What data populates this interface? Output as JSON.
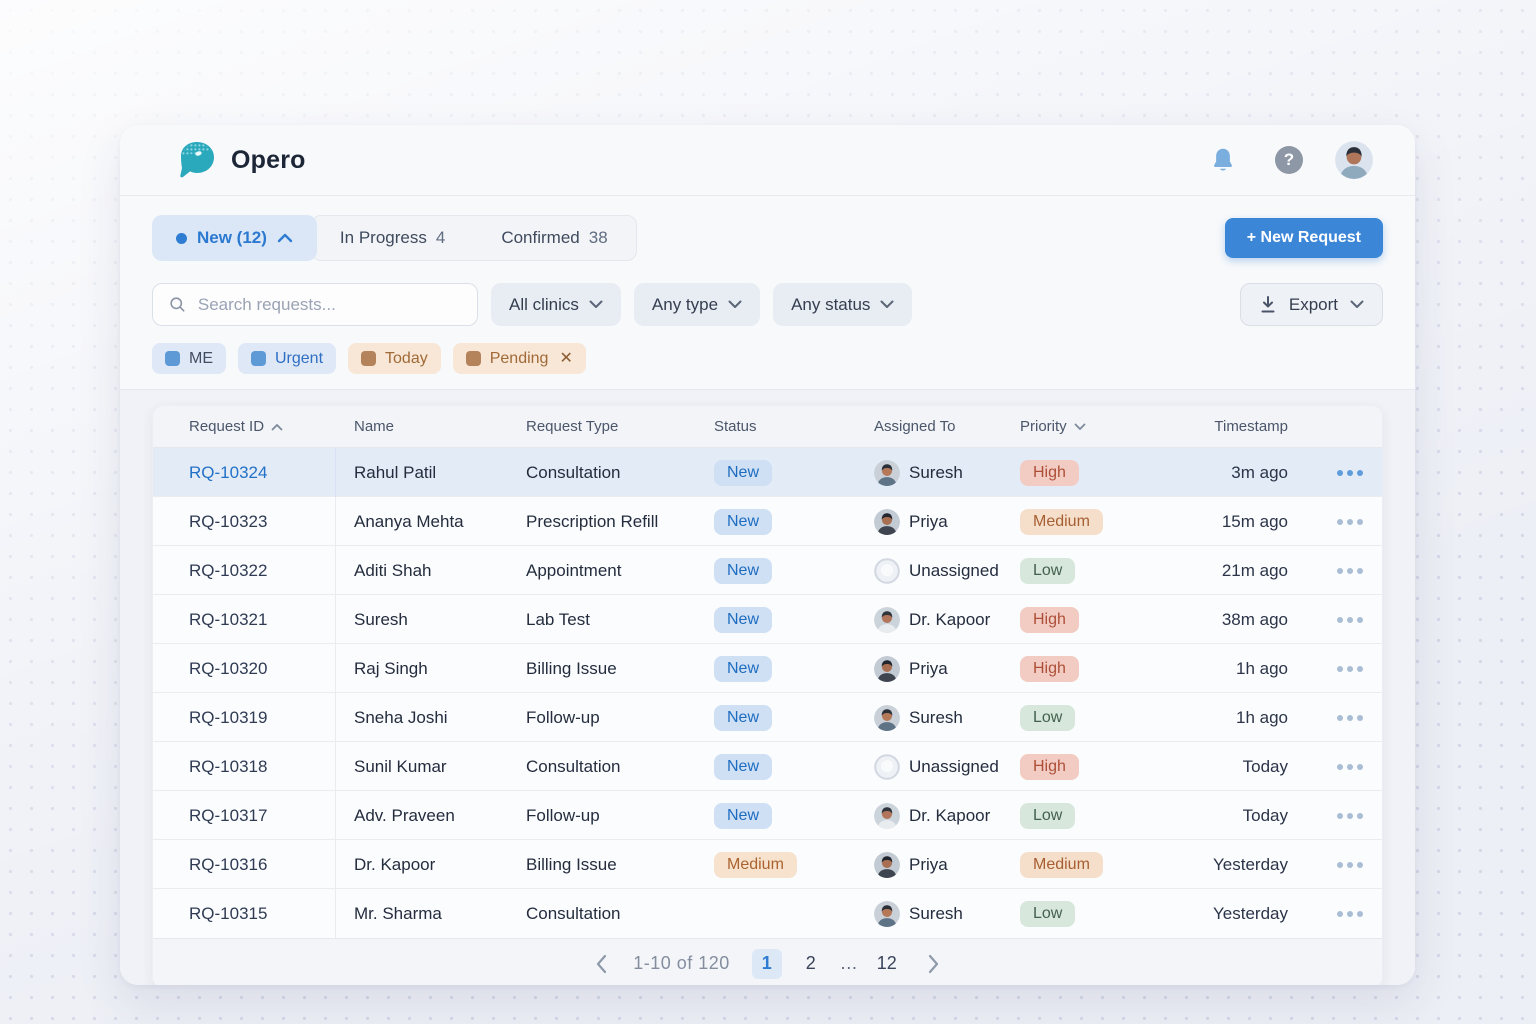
{
  "brand": {
    "name": "Opero",
    "logo_icon": "fish-logo-icon",
    "logo_colors": {
      "body": "#2aa9bd",
      "top": "#8fd6de",
      "accent": "#1b8fa6"
    }
  },
  "header": {
    "bell_icon": "notification-bell-icon",
    "help_icon": "help-question-icon",
    "avatar": "user-avatar",
    "bell_color": "#79aede"
  },
  "tabs": {
    "active": {
      "label": "New (12)"
    },
    "inactive": [
      {
        "label": "In Progress",
        "count": "4"
      },
      {
        "label": "Confirmed",
        "count": "38"
      }
    ]
  },
  "actions": {
    "new_request_label": "+ New Request",
    "accent_color": "#3c86d8"
  },
  "filters": {
    "search_placeholder": "Search requests...",
    "clinics_label": "All clinics",
    "type_label": "Any type",
    "status_label": "Any status",
    "export_label": "Export"
  },
  "chips": [
    {
      "label": "ME",
      "tone": "blue",
      "accent_text": false,
      "closable": false
    },
    {
      "label": "Urgent",
      "tone": "blue",
      "accent_text": true,
      "closable": false
    },
    {
      "label": "Today",
      "tone": "orange",
      "accent_text": true,
      "closable": false
    },
    {
      "label": "Pending",
      "tone": "orange",
      "accent_text": true,
      "closable": true
    }
  ],
  "table": {
    "columns": [
      {
        "label": "Request ID",
        "sort": "asc"
      },
      {
        "label": "Name"
      },
      {
        "label": "Request Type"
      },
      {
        "label": "Status"
      },
      {
        "label": "Assigned To"
      },
      {
        "label": "Priority",
        "sort": "desc"
      },
      {
        "label": "Timestamp"
      }
    ],
    "status_colors": {
      "new_bg": "#cfe0f4",
      "new_text": "#1d6cc0"
    },
    "priority_colors": {
      "high_bg": "#f2ccc3",
      "high_text": "#ad4f38",
      "medium_bg": "#f6dfca",
      "medium_text": "#a55f33",
      "low_bg": "#d7e7db",
      "low_text": "#44604f"
    },
    "rows": [
      {
        "id": "RQ-10324",
        "name": "Rahul Patil",
        "type": "Consultation",
        "status": "New",
        "assigned": "Suresh",
        "avatar": "suresh",
        "priority": "High",
        "time": "3m ago",
        "selected": true
      },
      {
        "id": "RQ-10323",
        "name": "Ananya Mehta",
        "type": "Prescription Refill",
        "status": "New",
        "assigned": "Priya",
        "avatar": "priya",
        "priority": "Medium",
        "time": "15m ago",
        "selected": false
      },
      {
        "id": "RQ-10322",
        "name": "Aditi Shah",
        "type": "Appointment",
        "status": "New",
        "assigned": "Unassigned",
        "avatar": "none",
        "priority": "Low",
        "time": "21m ago",
        "selected": false
      },
      {
        "id": "RQ-10321",
        "name": "Suresh",
        "type": "Lab Test",
        "status": "New",
        "assigned": "Dr. Kapoor",
        "avatar": "kapoor",
        "priority": "High",
        "time": "38m ago",
        "selected": false
      },
      {
        "id": "RQ-10320",
        "name": "Raj Singh",
        "type": "Billing Issue",
        "status": "New",
        "assigned": "Priya",
        "avatar": "priya",
        "priority": "High",
        "time": "1h ago",
        "selected": false
      },
      {
        "id": "RQ-10319",
        "name": "Sneha Joshi",
        "type": "Follow-up",
        "status": "New",
        "assigned": "Suresh",
        "avatar": "suresh",
        "priority": "Low",
        "time": "1h ago",
        "selected": false
      },
      {
        "id": "RQ-10318",
        "name": "Sunil Kumar",
        "type": "Consultation",
        "status": "New",
        "assigned": "Unassigned",
        "avatar": "none",
        "priority": "High",
        "time": "Today",
        "selected": false
      },
      {
        "id": "RQ-10317",
        "name": "Adv. Praveen",
        "type": "Follow-up",
        "status": "New",
        "assigned": "Dr. Kapoor",
        "avatar": "kapoor",
        "priority": "Low",
        "time": "Today",
        "selected": false
      },
      {
        "id": "RQ-10316",
        "name": "Dr. Kapoor",
        "type": "Billing Issue",
        "status": "Medium",
        "assigned": "Priya",
        "avatar": "priya",
        "priority": "Medium",
        "time": "Yesterday",
        "selected": false
      },
      {
        "id": "RQ-10315",
        "name": "Mr. Sharma",
        "type": "Consultation",
        "status": "",
        "assigned": "Suresh",
        "avatar": "suresh",
        "priority": "Low",
        "time": "Yesterday",
        "selected": false
      }
    ]
  },
  "people": {
    "suresh": {
      "bg": "#c9d0d8",
      "skin": "#b5795a",
      "hair": "#2b2f38",
      "shirt": "#5f7387"
    },
    "priya": {
      "bg": "#c2cad3",
      "skin": "#a96f52",
      "hair": "#23262e",
      "shirt": "#3f4550"
    },
    "kapoor": {
      "bg": "#ccd4db",
      "skin": "#b0755a",
      "hair": "#30343d",
      "shirt": "#e8ecef"
    },
    "header_user": {
      "bg": "#dbe4ee",
      "skin": "#b0765a",
      "hair": "#2b2f38",
      "shirt": "#8fa9bd"
    }
  },
  "pagination": {
    "range_label": "1-10 of 120",
    "pages": [
      {
        "label": "1",
        "active": true
      },
      {
        "label": "2",
        "active": false
      },
      {
        "label": "…",
        "active": false,
        "ellipsis": true
      },
      {
        "label": "12",
        "active": false
      }
    ]
  }
}
